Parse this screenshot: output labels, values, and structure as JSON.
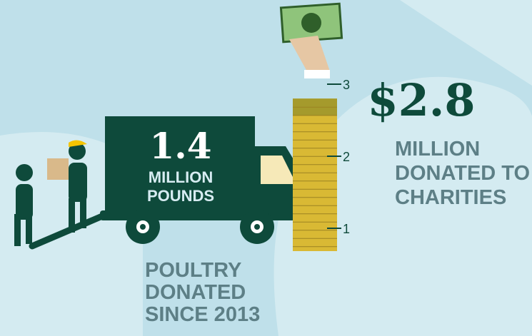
{
  "truck": {
    "amount": "1.4",
    "unit_lines": [
      "MILLION",
      "POUNDS"
    ]
  },
  "caption": [
    "POULTRY",
    "DONATED",
    "SINCE 2013"
  ],
  "donation": {
    "value": 2.8,
    "value_label": "$2.8",
    "lines": [
      "MILLION",
      "DONATED TO",
      "CHARITIES"
    ]
  },
  "scale": {
    "ticks": [
      1,
      2,
      3
    ]
  }
}
